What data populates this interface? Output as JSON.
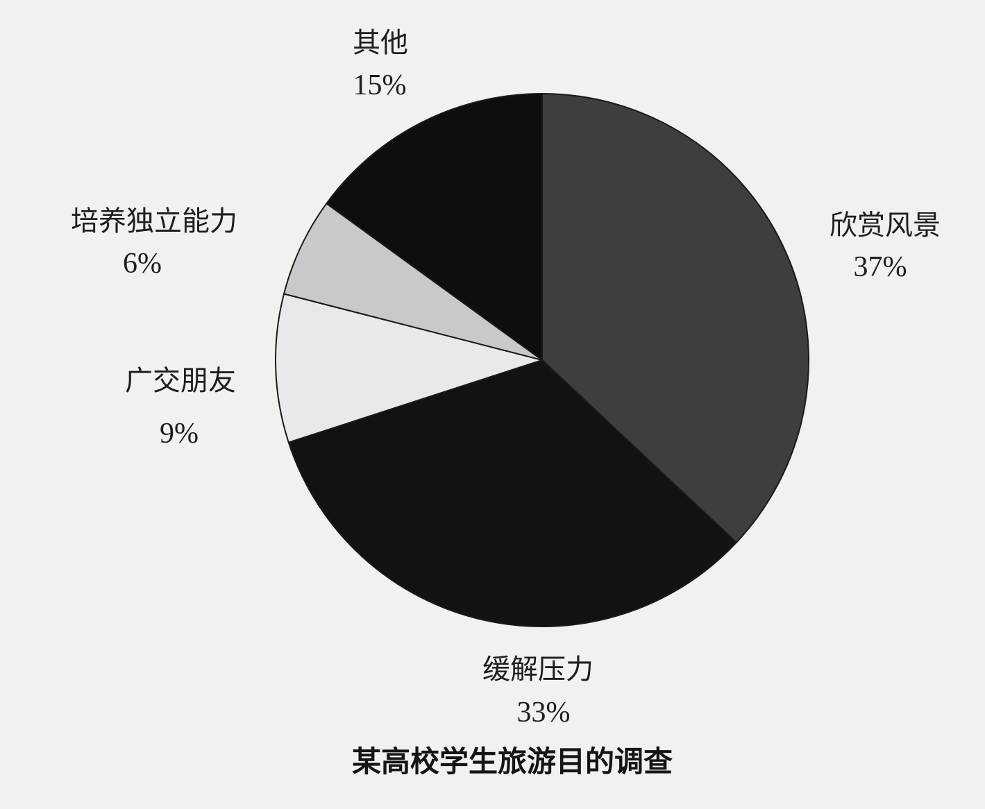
{
  "chart_data": {
    "type": "pie",
    "title": "某高校学生旅游目的调查",
    "slices": [
      {
        "label": "欣赏风景",
        "value": 37,
        "display": "37%",
        "color": "#3e3e3e"
      },
      {
        "label": "缓解压力",
        "value": 33,
        "display": "33%",
        "color": "#121212"
      },
      {
        "label": "广交朋友",
        "value": 9,
        "display": "9%",
        "color": "#e9e9eb"
      },
      {
        "label": "培养独立能力",
        "value": 6,
        "display": "6%",
        "color": "#c9c9cc"
      },
      {
        "label": "其他",
        "value": 15,
        "display": "15%",
        "color": "#0e0e0e"
      }
    ],
    "legend": "none"
  }
}
